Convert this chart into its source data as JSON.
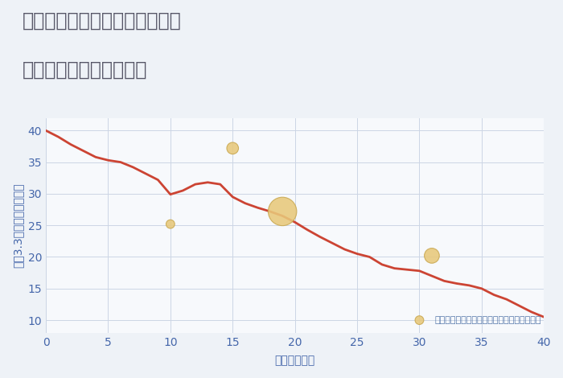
{
  "title_line1": "兵庫県たつの市揖保川町黍田の",
  "title_line2": "築年数別中古戸建て価格",
  "xlabel": "築年数（年）",
  "ylabel": "坪（3.3㎡）単価（万円）",
  "bg_color": "#eef2f7",
  "plot_bg_color": "#f7f9fc",
  "line_color": "#cc4433",
  "line_x": [
    0,
    1,
    2,
    3,
    4,
    5,
    6,
    7,
    8,
    9,
    10,
    11,
    12,
    13,
    14,
    15,
    16,
    17,
    18,
    19,
    20,
    21,
    22,
    23,
    24,
    25,
    26,
    27,
    28,
    29,
    30,
    31,
    32,
    33,
    34,
    35,
    36,
    37,
    38,
    39,
    40
  ],
  "line_y": [
    40.0,
    39.0,
    37.8,
    36.8,
    35.8,
    35.3,
    35.0,
    34.2,
    33.2,
    32.2,
    29.9,
    30.5,
    31.5,
    31.8,
    31.5,
    29.5,
    28.5,
    27.8,
    27.2,
    26.5,
    25.5,
    24.3,
    23.2,
    22.2,
    21.2,
    20.5,
    20.0,
    18.8,
    18.2,
    18.0,
    17.8,
    17.0,
    16.2,
    15.8,
    15.5,
    15.0,
    14.0,
    13.3,
    12.3,
    11.3,
    10.5
  ],
  "scatter_x": [
    10,
    15,
    19,
    30,
    31
  ],
  "scatter_y": [
    25.2,
    37.2,
    27.2,
    10.0,
    20.2
  ],
  "scatter_sizes": [
    60,
    110,
    650,
    60,
    180
  ],
  "scatter_color": "#e8c87a",
  "scatter_edge_color": "#c9a850",
  "annotation": "円の大きさは、取引のあった物件面積を示す",
  "annotation_color": "#5577aa",
  "xlim": [
    0,
    40
  ],
  "ylim": [
    8,
    42
  ],
  "xticks": [
    0,
    5,
    10,
    15,
    20,
    25,
    30,
    35,
    40
  ],
  "yticks": [
    10,
    15,
    20,
    25,
    30,
    35,
    40
  ],
  "title_color": "#555566",
  "tick_color": "#4466aa",
  "grid_color": "#ccd5e5",
  "title_fontsize": 17,
  "label_fontsize": 10,
  "annot_fontsize": 8
}
